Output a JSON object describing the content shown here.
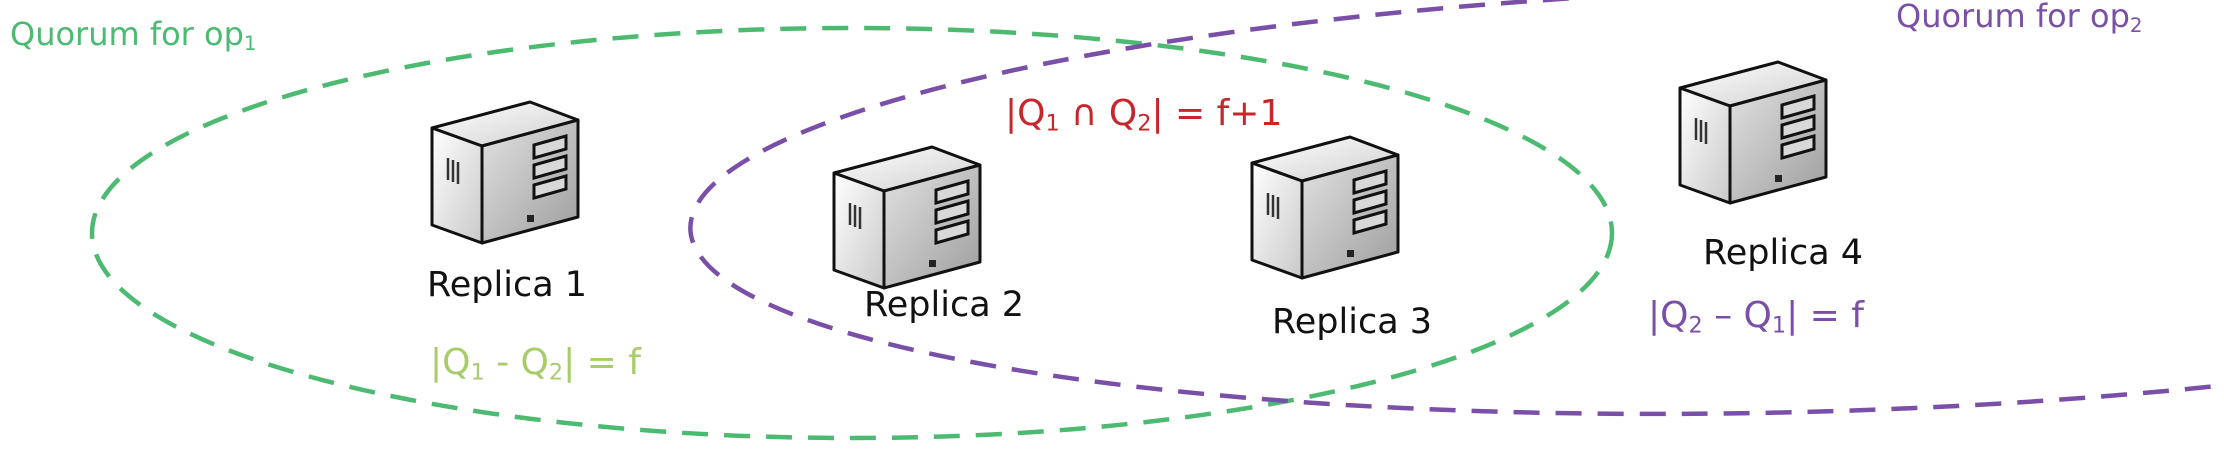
{
  "colors": {
    "quorum_op1": "#4dba72",
    "quorum_op2": "#7a4fa8",
    "intersection_text": "#c9262b",
    "q1_minus_q2_text": "#a9cc6b"
  },
  "quorums": {
    "op1": {
      "label_prefix": "Quorum for op",
      "label_sub": "1"
    },
    "op2": {
      "label_prefix": "Quorum for op",
      "label_sub": "2"
    }
  },
  "replicas": [
    {
      "label": "Replica 1",
      "icon": "server-icon"
    },
    {
      "label": "Replica 2",
      "icon": "server-icon"
    },
    {
      "label": "Replica 3",
      "icon": "server-icon"
    },
    {
      "label": "Replica 4",
      "icon": "server-icon"
    }
  ],
  "formulas": {
    "intersection": {
      "open": "|Q",
      "s1": "1",
      "mid": " ∩ Q",
      "s2": "2",
      "close": "| = f+1"
    },
    "q1_minus_q2": {
      "open": "|Q",
      "s1": "1",
      "mid": " - Q",
      "s2": "2",
      "close": "| = f"
    },
    "q2_minus_q1": {
      "open": "|Q",
      "s1": "2",
      "mid": " – Q",
      "s2": "1",
      "close": "| = f"
    }
  }
}
